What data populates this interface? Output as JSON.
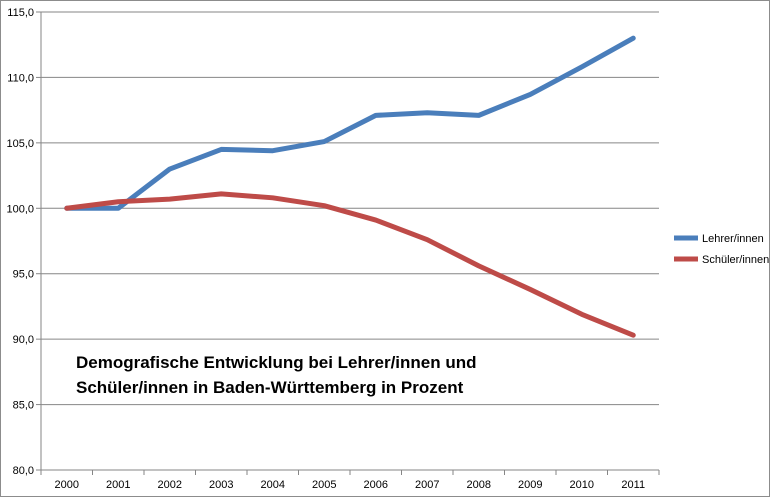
{
  "chart_data": {
    "type": "line",
    "title": "Demografische Entwicklung bei Lehrer/innen und Schüler/innen in Baden-Württemberg in Prozent",
    "xlabel": "",
    "ylabel": "",
    "ylim": [
      80,
      115
    ],
    "y_ticks": [
      "80,0",
      "85,0",
      "90,0",
      "95,0",
      "100,0",
      "105,0",
      "110,0",
      "115,0"
    ],
    "categories": [
      "2000",
      "2001",
      "2002",
      "2003",
      "2004",
      "2005",
      "2006",
      "2007",
      "2008",
      "2009",
      "2010",
      "2011"
    ],
    "grid": true,
    "legend_position": "right",
    "series": [
      {
        "name": "Lehrer/innen",
        "color": "#4a7ebb",
        "values": [
          100.0,
          100.0,
          103.0,
          104.5,
          104.4,
          105.1,
          107.1,
          107.3,
          107.1,
          108.7,
          110.8,
          113.0
        ]
      },
      {
        "name": "Schüler/innen",
        "color": "#be4b48",
        "values": [
          100.0,
          100.5,
          100.7,
          101.1,
          100.8,
          100.2,
          99.1,
          97.6,
          95.6,
          93.8,
          91.9,
          90.3
        ]
      }
    ]
  }
}
